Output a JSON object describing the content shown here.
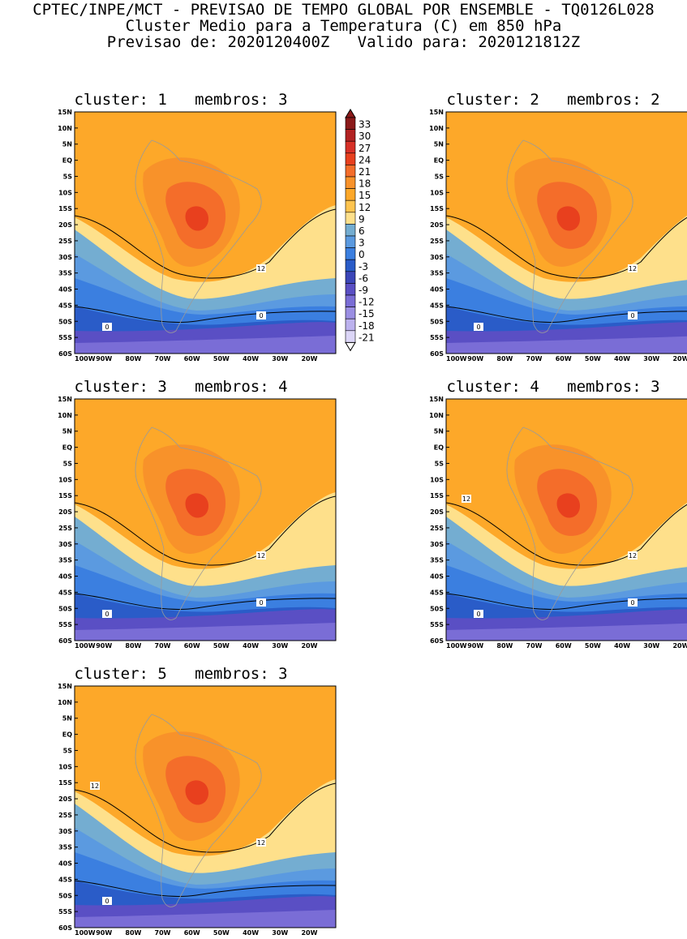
{
  "header": {
    "line1": "CPTEC/INPE/MCT - PREVISAO DE TEMPO GLOBAL POR ENSEMBLE - TQ0126L028",
    "line2": "Cluster Medio para a Temperatura (C) em 850 hPa",
    "line3": "Previsao de: 2020120400Z   Valido para: 2020121812Z"
  },
  "lat_labels": [
    "15N",
    "10N",
    "5N",
    "EQ",
    "5S",
    "10S",
    "15S",
    "20S",
    "25S",
    "30S",
    "35S",
    "40S",
    "45S",
    "50S",
    "55S",
    "60S"
  ],
  "lon_labels": [
    "100W",
    "90W",
    "80W",
    "70W",
    "60W",
    "50W",
    "40W",
    "30W",
    "20W"
  ],
  "colorbar": {
    "levels": [
      "33",
      "30",
      "27",
      "24",
      "21",
      "18",
      "15",
      "12",
      "9",
      "6",
      "3",
      "0",
      "-3",
      "-6",
      "-9",
      "-12",
      "-15",
      "-18",
      "-21"
    ],
    "colors": [
      "#8b1a1a",
      "#b22222",
      "#d73027",
      "#e8401e",
      "#f46d2a",
      "#f8922a",
      "#fda829",
      "#fec44f",
      "#fee08b",
      "#74add1",
      "#5b9ae0",
      "#3b7fe0",
      "#2a5cc8",
      "#3b46b8",
      "#5a4fc4",
      "#7a6dd6",
      "#9b8fe3",
      "#bcb2ee",
      "#dcd6f7"
    ]
  },
  "panels": [
    {
      "title": "cluster: 1   membros: 3",
      "c12": "12",
      "c0": "0",
      "c0b": "0"
    },
    {
      "title": "cluster: 2   membros: 2",
      "c12": "12",
      "c0": "0",
      "c0b": "0"
    },
    {
      "title": "cluster: 3   membros: 4",
      "c12": "12",
      "c0": "0",
      "c0b": "0"
    },
    {
      "title": "cluster: 4   membros: 3",
      "c12": "12",
      "c12b": "12",
      "c0": "0",
      "c0b": "0"
    },
    {
      "title": "cluster: 5   membros: 3",
      "c12": "12",
      "c12b": "12",
      "c0": "0"
    }
  ]
}
